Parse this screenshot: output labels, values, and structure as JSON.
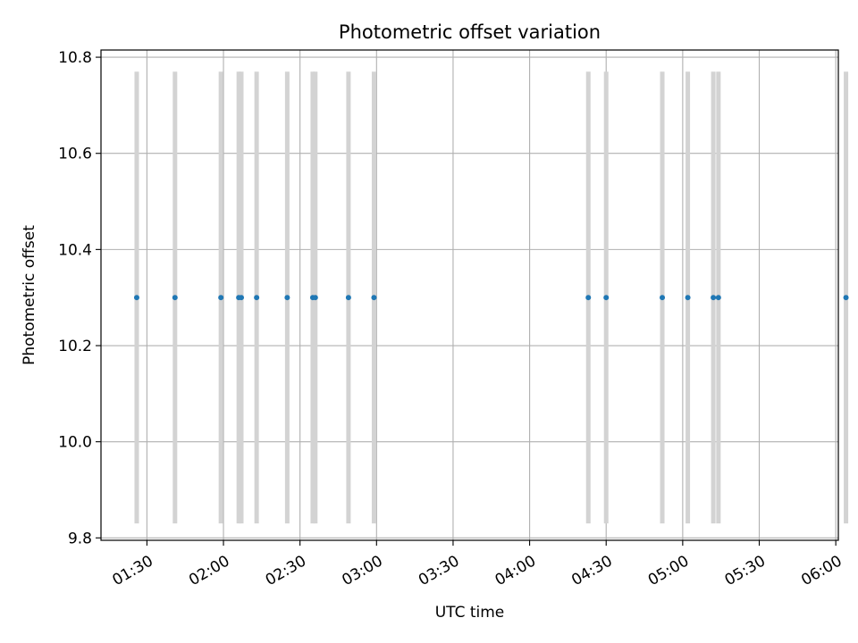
{
  "chart_data": {
    "type": "scatter",
    "title": "Photometric offset variation",
    "xlabel": "UTC time",
    "ylabel": "Photometric offset",
    "x_axis_type": "time",
    "xlim": [
      "01:12",
      "06:01"
    ],
    "ylim": [
      9.795,
      10.815
    ],
    "xticks": [
      "01:30",
      "02:00",
      "02:30",
      "03:00",
      "03:30",
      "04:00",
      "04:30",
      "05:00",
      "05:30",
      "06:00"
    ],
    "yticks": [
      9.8,
      10.0,
      10.2,
      10.4,
      10.6,
      10.8
    ],
    "ytick_labels": [
      "9.8",
      "10.0",
      "10.2",
      "10.4",
      "10.6",
      "10.8"
    ],
    "grid": true,
    "legend": "none",
    "series": [
      {
        "marker": "point",
        "color": "#1f77b4",
        "x": [
          "01:26",
          "01:41",
          "01:59",
          "02:06",
          "02:07",
          "02:13",
          "02:25",
          "02:35",
          "02:36",
          "02:49",
          "02:59",
          "04:23",
          "04:30",
          "04:52",
          "05:02",
          "05:12",
          "05:14",
          "06:04"
        ],
        "y": [
          10.3,
          10.3,
          10.3,
          10.3,
          10.3,
          10.3,
          10.3,
          10.3,
          10.3,
          10.3,
          10.3,
          10.3,
          10.3,
          10.3,
          10.3,
          10.3,
          10.3,
          10.3
        ],
        "error_bar_range": [
          9.83,
          10.77
        ],
        "error_bar_color": "#d3d3d3"
      }
    ]
  }
}
